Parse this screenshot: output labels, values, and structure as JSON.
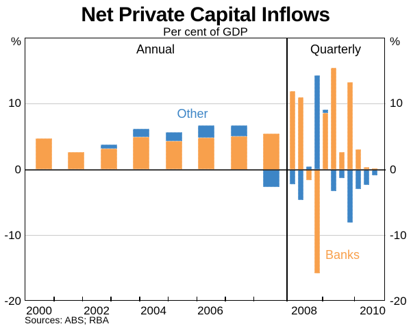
{
  "title": "Net Private Capital Inflows",
  "subtitle": "Per cent of GDP",
  "source_note": "Sources: ABS; RBA",
  "colors": {
    "banks": "#F8A04C",
    "other": "#3D85C6",
    "grid": "#C9C9C9",
    "zero_line": "#3B3B3B",
    "frame": "#000000"
  },
  "y_axis": {
    "unit": "%",
    "range": [
      -20,
      20
    ],
    "tick_labels": [
      "10",
      "0",
      "-10",
      "-20"
    ],
    "tick_values": [
      10,
      0,
      -10,
      -20
    ],
    "gridline_values": [
      10,
      -10
    ],
    "zero_value": 0
  },
  "chart_data": {
    "type": "bar",
    "title": "Net Private Capital Inflows",
    "subtitle": "Per cent of GDP",
    "ylim": [
      -20,
      20
    ],
    "stacked": true,
    "panels": [
      {
        "label": "Annual",
        "x_labels": [
          "2000",
          "2002",
          "2004",
          "2006"
        ],
        "categories": [
          "2000",
          "2001",
          "2002",
          "2003",
          "2004",
          "2005",
          "2006",
          "2007"
        ],
        "series": [
          {
            "name": "Banks",
            "values": [
              4.7,
              2.6,
              3.2,
              4.9,
              4.3,
              4.8,
              5.0,
              5.5
            ]
          },
          {
            "name": "Other",
            "values": [
              0,
              0,
              0.6,
              1.3,
              1.4,
              1.9,
              1.7,
              -2.7
            ]
          }
        ]
      },
      {
        "label": "Quarterly",
        "x_labels": [
          "2008",
          "2010"
        ],
        "categories": [
          "2008Q1",
          "2008Q2",
          "2008Q3",
          "2008Q4",
          "2009Q1",
          "2009Q2",
          "2009Q3",
          "2009Q4",
          "2010Q1",
          "2010Q2",
          "2010Q3"
        ],
        "series": [
          {
            "name": "Banks",
            "values": [
              11.9,
              11.0,
              -1.6,
              -15.7,
              8.6,
              15.4,
              2.7,
              13.2,
              3.1,
              0.4,
              0.2
            ]
          },
          {
            "name": "Other",
            "values": [
              -2.2,
              -4.6,
              0.5,
              14.3,
              0.5,
              -3.3,
              -1.3,
              -8.0,
              -3.0,
              -2.3,
              -0.9
            ]
          }
        ]
      }
    ],
    "annotations": [
      {
        "text": "Other",
        "series": "other"
      },
      {
        "text": "Banks",
        "series": "banks"
      }
    ],
    "legend_position": "inline-annotations",
    "grid": "horizontal-only"
  }
}
